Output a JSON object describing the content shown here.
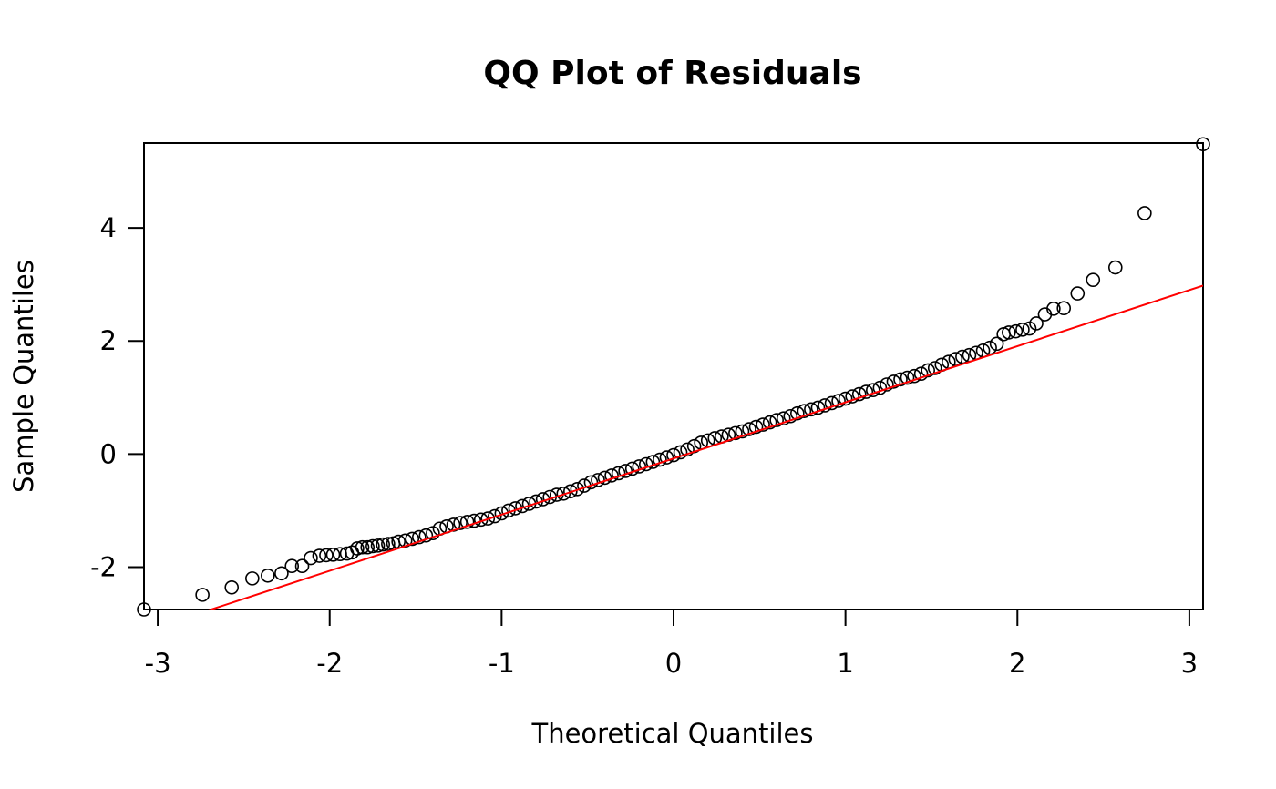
{
  "chart_data": {
    "type": "scatter",
    "title": "QQ Plot of Residuals",
    "xlabel": "Theoretical Quantiles",
    "ylabel": "Sample Quantiles",
    "xlim": [
      -3.08,
      3.08
    ],
    "ylim": [
      -2.75,
      5.5
    ],
    "x_ticks": [
      -3,
      -2,
      -1,
      0,
      1,
      2,
      3
    ],
    "x_tick_labels": [
      "-3",
      "-2",
      "-1",
      "0",
      "1",
      "2",
      "3"
    ],
    "y_ticks": [
      -2,
      0,
      2,
      4
    ],
    "y_tick_labels": [
      "-2",
      "0",
      "2",
      "4"
    ],
    "grid": false,
    "legend": "none",
    "series": [
      {
        "kind": "points",
        "color": "#000000",
        "marker": "open-circle",
        "points": [
          [
            -3.08,
            -2.75
          ],
          [
            -2.74,
            -2.49
          ],
          [
            -2.57,
            -2.36
          ],
          [
            -2.45,
            -2.2
          ],
          [
            -2.36,
            -2.15
          ],
          [
            -2.28,
            -2.11
          ],
          [
            -2.22,
            -1.98
          ],
          [
            -2.16,
            -1.98
          ],
          [
            -2.11,
            -1.84
          ],
          [
            -2.06,
            -1.8
          ],
          [
            -2.02,
            -1.79
          ],
          [
            -1.98,
            -1.78
          ],
          [
            -1.94,
            -1.77
          ],
          [
            -1.9,
            -1.76
          ],
          [
            -1.87,
            -1.74
          ],
          [
            -1.84,
            -1.67
          ],
          [
            -1.81,
            -1.65
          ],
          [
            -1.78,
            -1.65
          ],
          [
            -1.75,
            -1.63
          ],
          [
            -1.72,
            -1.62
          ],
          [
            -1.69,
            -1.6
          ],
          [
            -1.66,
            -1.59
          ],
          [
            -1.63,
            -1.58
          ],
          [
            -1.6,
            -1.55
          ],
          [
            -1.56,
            -1.53
          ],
          [
            -1.52,
            -1.5
          ],
          [
            -1.48,
            -1.47
          ],
          [
            -1.44,
            -1.44
          ],
          [
            -1.4,
            -1.4
          ],
          [
            -1.36,
            -1.32
          ],
          [
            -1.32,
            -1.28
          ],
          [
            -1.28,
            -1.25
          ],
          [
            -1.24,
            -1.22
          ],
          [
            -1.2,
            -1.2
          ],
          [
            -1.16,
            -1.18
          ],
          [
            -1.12,
            -1.16
          ],
          [
            -1.08,
            -1.14
          ],
          [
            -1.04,
            -1.1
          ],
          [
            -1.0,
            -1.05
          ],
          [
            -0.96,
            -1.0
          ],
          [
            -0.92,
            -0.96
          ],
          [
            -0.88,
            -0.92
          ],
          [
            -0.84,
            -0.88
          ],
          [
            -0.8,
            -0.84
          ],
          [
            -0.76,
            -0.8
          ],
          [
            -0.72,
            -0.76
          ],
          [
            -0.68,
            -0.72
          ],
          [
            -0.64,
            -0.7
          ],
          [
            -0.6,
            -0.66
          ],
          [
            -0.56,
            -0.62
          ],
          [
            -0.52,
            -0.56
          ],
          [
            -0.48,
            -0.5
          ],
          [
            -0.44,
            -0.46
          ],
          [
            -0.4,
            -0.42
          ],
          [
            -0.36,
            -0.38
          ],
          [
            -0.32,
            -0.34
          ],
          [
            -0.28,
            -0.3
          ],
          [
            -0.24,
            -0.26
          ],
          [
            -0.2,
            -0.22
          ],
          [
            -0.16,
            -0.18
          ],
          [
            -0.12,
            -0.14
          ],
          [
            -0.08,
            -0.1
          ],
          [
            -0.04,
            -0.06
          ],
          [
            0.0,
            -0.02
          ],
          [
            0.04,
            0.03
          ],
          [
            0.08,
            0.08
          ],
          [
            0.12,
            0.14
          ],
          [
            0.16,
            0.2
          ],
          [
            0.2,
            0.24
          ],
          [
            0.24,
            0.28
          ],
          [
            0.28,
            0.31
          ],
          [
            0.32,
            0.34
          ],
          [
            0.36,
            0.37
          ],
          [
            0.4,
            0.4
          ],
          [
            0.44,
            0.44
          ],
          [
            0.48,
            0.48
          ],
          [
            0.52,
            0.52
          ],
          [
            0.56,
            0.56
          ],
          [
            0.6,
            0.6
          ],
          [
            0.64,
            0.63
          ],
          [
            0.68,
            0.67
          ],
          [
            0.72,
            0.72
          ],
          [
            0.76,
            0.76
          ],
          [
            0.8,
            0.79
          ],
          [
            0.84,
            0.82
          ],
          [
            0.88,
            0.86
          ],
          [
            0.92,
            0.9
          ],
          [
            0.96,
            0.94
          ],
          [
            1.0,
            0.98
          ],
          [
            1.04,
            1.02
          ],
          [
            1.08,
            1.06
          ],
          [
            1.12,
            1.1
          ],
          [
            1.16,
            1.13
          ],
          [
            1.2,
            1.17
          ],
          [
            1.24,
            1.23
          ],
          [
            1.28,
            1.28
          ],
          [
            1.32,
            1.32
          ],
          [
            1.36,
            1.35
          ],
          [
            1.4,
            1.38
          ],
          [
            1.44,
            1.42
          ],
          [
            1.48,
            1.48
          ],
          [
            1.52,
            1.52
          ],
          [
            1.56,
            1.58
          ],
          [
            1.6,
            1.63
          ],
          [
            1.64,
            1.68
          ],
          [
            1.68,
            1.72
          ],
          [
            1.72,
            1.75
          ],
          [
            1.76,
            1.79
          ],
          [
            1.8,
            1.83
          ],
          [
            1.84,
            1.88
          ],
          [
            1.88,
            1.95
          ],
          [
            1.92,
            2.12
          ],
          [
            1.95,
            2.15
          ],
          [
            1.99,
            2.17
          ],
          [
            2.03,
            2.2
          ],
          [
            2.07,
            2.22
          ],
          [
            2.11,
            2.31
          ],
          [
            2.16,
            2.47
          ],
          [
            2.21,
            2.57
          ],
          [
            2.27,
            2.58
          ],
          [
            2.35,
            2.84
          ],
          [
            2.44,
            3.08
          ],
          [
            2.57,
            3.3
          ],
          [
            2.74,
            4.26
          ],
          [
            3.08,
            5.48
          ]
        ]
      },
      {
        "kind": "line",
        "color": "#ff0000",
        "points": [
          [
            -2.74,
            -2.8
          ],
          [
            3.08,
            2.98
          ]
        ]
      }
    ]
  }
}
